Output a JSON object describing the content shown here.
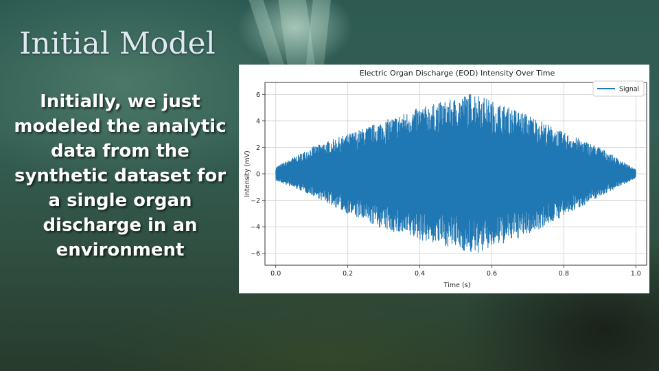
{
  "slide": {
    "title": "Initial Model",
    "body": "Initially, we just modeled the analytic data from the synthetic dataset for a single organ discharge in an environment"
  },
  "chart_data": {
    "type": "line",
    "title": "Electric Organ Discharge (EOD) Intensity Over Time",
    "xlabel": "Time (s)",
    "ylabel": "Intensity (mV)",
    "xlim": [
      -0.03,
      1.03
    ],
    "ylim": [
      -6.9,
      6.9
    ],
    "xticks": [
      0.0,
      0.2,
      0.4,
      0.6,
      0.8,
      1.0
    ],
    "xtick_labels": [
      "0.0",
      "0.2",
      "0.4",
      "0.6",
      "0.8",
      "1.0"
    ],
    "yticks": [
      -6,
      -4,
      -2,
      0,
      2,
      4,
      6
    ],
    "ytick_labels": [
      "−6",
      "−4",
      "−2",
      "0",
      "2",
      "4",
      "6"
    ],
    "grid": true,
    "legend_position": "top-right",
    "series": [
      {
        "name": "Signal",
        "color": "#1f77b4",
        "x": [
          0.0,
          0.1,
          0.2,
          0.3,
          0.4,
          0.5,
          0.55,
          0.6,
          0.7,
          0.8,
          0.9,
          1.0
        ],
        "upper": [
          0.5,
          2.0,
          3.0,
          4.0,
          5.0,
          5.7,
          6.2,
          5.5,
          4.5,
          3.1,
          2.0,
          0.3
        ],
        "lower": [
          -0.5,
          -1.6,
          -3.0,
          -4.2,
          -5.0,
          -5.6,
          -6.1,
          -5.6,
          -4.6,
          -3.2,
          -1.7,
          -0.3
        ]
      }
    ]
  }
}
